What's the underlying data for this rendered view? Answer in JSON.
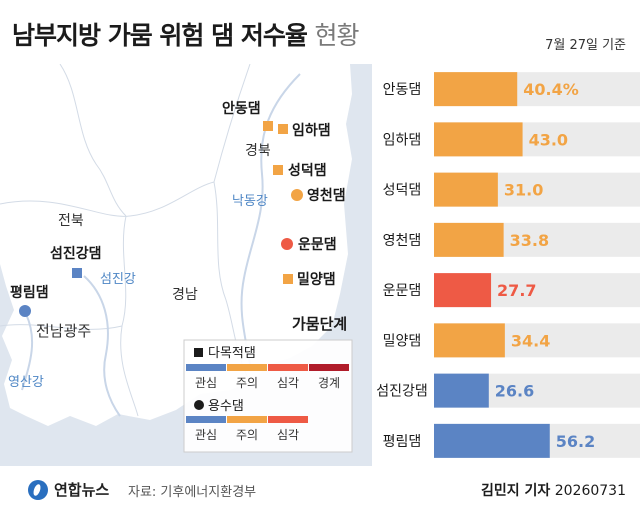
{
  "title": "남부지방 가뭄 위험 댐 저수율",
  "title_suffix": "현황",
  "date_note": "7월 27일 기준",
  "map": {
    "region_labels": [
      "경북",
      "전북",
      "경남",
      "전남광주"
    ],
    "river_labels": [
      "낙동강",
      "섬진강",
      "영산강"
    ],
    "dams": [
      {
        "name": "안동댐",
        "status": "주의"
      },
      {
        "name": "임하댐",
        "status": "주의"
      },
      {
        "name": "성덕댐",
        "status": "주의"
      },
      {
        "name": "영천댐",
        "status": "주의"
      },
      {
        "name": "운문댐",
        "status": "심각"
      },
      {
        "name": "밀양댐",
        "status": "주의"
      },
      {
        "name": "섬진강댐",
        "status": "관심"
      },
      {
        "name": "평림댐",
        "status": "관심"
      }
    ],
    "legend": {
      "title": "가뭄단계",
      "multi_purpose": {
        "label": "다목적댐",
        "stages": [
          "관심",
          "주의",
          "심각",
          "경계"
        ],
        "colors": [
          "#5b84c4",
          "#f2a445",
          "#ee5a45",
          "#b01c2a"
        ]
      },
      "water_supply": {
        "label": "용수댐",
        "stages": [
          "관심",
          "주의",
          "심각"
        ],
        "colors": [
          "#5b84c4",
          "#f2a445",
          "#ee5a45"
        ]
      }
    }
  },
  "chart_data": {
    "type": "bar",
    "orientation": "horizontal",
    "categories": [
      "안동댐",
      "임하댐",
      "성덕댐",
      "영천댐",
      "운문댐",
      "밀양댐",
      "섬진강댐",
      "평림댐"
    ],
    "values": [
      40.4,
      43.0,
      31.0,
      33.8,
      27.7,
      34.4,
      26.6,
      56.2
    ],
    "value_labels": [
      "40.4%",
      "43.0",
      "31.0",
      "33.8",
      "27.7",
      "34.4",
      "26.6",
      "56.2"
    ],
    "bar_colors": [
      "#f2a445",
      "#f2a445",
      "#f2a445",
      "#f2a445",
      "#ee5a45",
      "#f2a445",
      "#5b84c4",
      "#5b84c4"
    ],
    "xlim": [
      0,
      100
    ],
    "grid": false
  },
  "footer": {
    "logo_text": "연합뉴스",
    "source": "자료: 기후에너지환경부",
    "credit_name": "김민지 기자",
    "credit_date": "20260731"
  }
}
